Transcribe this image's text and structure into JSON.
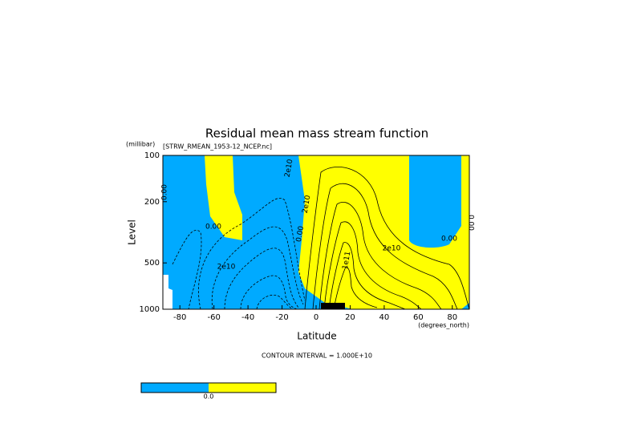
{
  "chart_data": {
    "type": "contour",
    "title": "Residual mean mass stream function",
    "subtitle": "[STRW_RMEAN_1953-12_NCEP.nc]",
    "x_label": "Latitude",
    "x_unit": "(degrees_north)",
    "y_label": "Level",
    "y_unit": "(millibar)",
    "xlim": [
      -90,
      90
    ],
    "xticks": [
      -80,
      -60,
      -40,
      -20,
      0,
      20,
      40,
      60,
      80
    ],
    "ylim": [
      1000,
      100
    ],
    "yticks": [
      100,
      200,
      500,
      1000
    ],
    "log_scale_y": true,
    "colors": [
      "#00aaff",
      "#ffff00"
    ],
    "contour_labels": [
      "0.00",
      "0.00",
      "2e10",
      "2e10",
      "2e10",
      "0.00",
      "1e11",
      "2e10",
      "0.00",
      "0.00"
    ],
    "contour_interval": "CONTOUR INTERVAL = 1.000E+10",
    "colorbar_label": "0.0"
  }
}
